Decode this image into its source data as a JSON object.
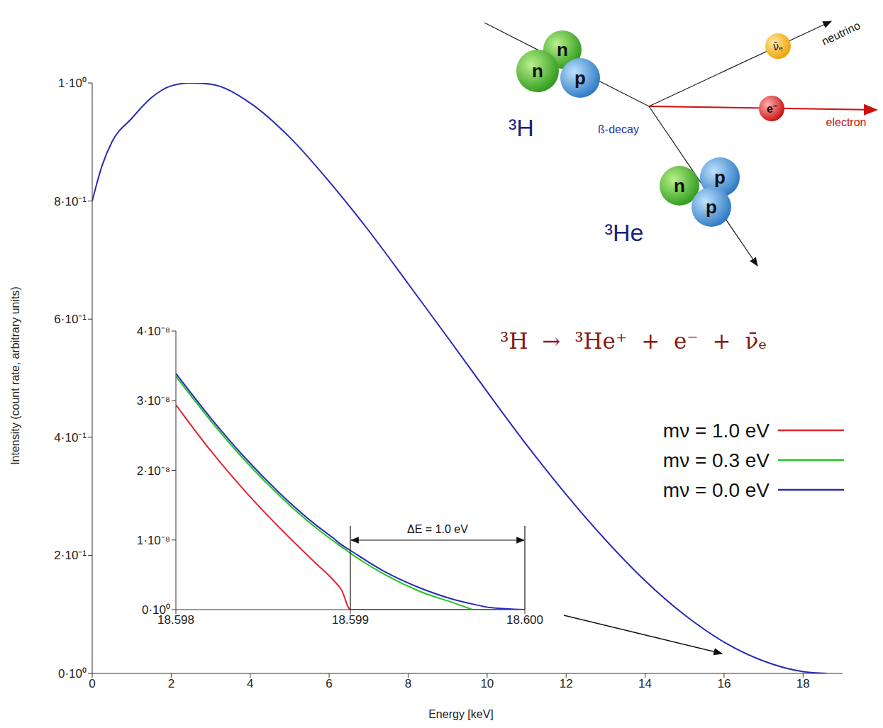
{
  "chart_data": [
    {
      "type": "line",
      "x_label": "Energy [keV]",
      "y_label": "Intensity (count rate, arbitrary units)",
      "x": [
        0,
        0.25,
        0.5,
        1,
        1.5,
        2,
        2.5,
        3,
        4,
        5,
        6,
        7,
        8,
        9,
        10,
        11,
        12,
        13,
        14,
        15,
        16,
        17,
        18,
        18.6
      ],
      "values": [
        0.8,
        0.86,
        0.9,
        0.94,
        0.975,
        0.995,
        1.0,
        0.998,
        0.966,
        0.908,
        0.833,
        0.75,
        0.66,
        0.569,
        0.477,
        0.387,
        0.303,
        0.226,
        0.157,
        0.099,
        0.053,
        0.021,
        0.003,
        0
      ],
      "color": "#2a2ab8",
      "xlim": [
        0,
        19
      ],
      "xticks": [
        0,
        2,
        4,
        6,
        8,
        10,
        12,
        14,
        16,
        18
      ],
      "ylim": [
        0,
        1
      ],
      "yticks": [
        {
          "value": 0,
          "label": "0·10⁰"
        },
        {
          "value": 0.2,
          "label": "2·10⁻¹"
        },
        {
          "value": 0.4,
          "label": "4·10⁻¹"
        },
        {
          "value": 0.6,
          "label": "6·10⁻¹"
        },
        {
          "value": 0.8,
          "label": "8·10⁻¹"
        },
        {
          "value": 1,
          "label": "1·10⁰"
        }
      ],
      "grid": false
    },
    {
      "type": "line",
      "x": [
        18.598,
        18.5982,
        18.5984,
        18.5986,
        18.5988,
        18.5989,
        18.59895,
        18.599,
        18.5992,
        18.5994,
        18.5996,
        18.5997,
        18.5998,
        18.6
      ],
      "series": [
        {
          "name": "mν = 1.0 eV",
          "color": "#e3262d",
          "values": [
            2.94e-08,
            2.28e-08,
            1.69e-08,
            1.16e-08,
            6.7e-09,
            4.3e-09,
            2.8e-09,
            0,
            0,
            0,
            0,
            0,
            0,
            0
          ]
        },
        {
          "name": "mν = 0.3 eV",
          "color": "#22c422",
          "values": [
            3.35e-08,
            2.71e-08,
            2.13e-08,
            1.62e-08,
            1.18e-08,
            9.9e-09,
            9e-09,
            8.1e-09,
            5e-09,
            2.6e-09,
            9e-10,
            0,
            null,
            null
          ]
        },
        {
          "name": "mν = 0.0 eV",
          "color": "#2a2ab8",
          "values": [
            3.39e-08,
            2.75e-08,
            2.17e-08,
            1.66e-08,
            1.22e-08,
            1.03e-08,
            9.3e-09,
            8.5e-09,
            5.4e-09,
            3.1e-09,
            1.4e-09,
            8e-10,
            3e-10,
            0
          ]
        }
      ],
      "xlim": [
        18.598,
        18.6
      ],
      "xticks": [
        18.598,
        18.599,
        {
          "value": 18.6,
          "label": "18.600"
        }
      ],
      "ylim": [
        0,
        4e-08
      ],
      "yticks": [
        {
          "value": 0,
          "label": "0·10⁰"
        },
        {
          "value": 1e-08,
          "label": "1·10⁻⁸"
        },
        {
          "value": 2e-08,
          "label": "2·10⁻⁸"
        },
        {
          "value": 3e-08,
          "label": "3·10⁻⁸"
        },
        {
          "value": 4e-08,
          "label": "4·10⁻⁸"
        }
      ],
      "grid": false,
      "legend": "right",
      "annotations": [
        {
          "text": "ΔE = 1.0 eV",
          "x": [
            18.599,
            18.6
          ]
        }
      ]
    }
  ],
  "diagram": {
    "parent": {
      "label": "³H",
      "nucleons": [
        "n",
        "n",
        "p"
      ]
    },
    "process": "ß-decay",
    "neutrino": {
      "symbol": "ν̄ₑ",
      "label": "neutrino"
    },
    "electron": {
      "symbol": "e⁻",
      "label": "electron"
    },
    "daughter": {
      "label": "³He",
      "nucleons": [
        "p",
        "n",
        "p"
      ]
    },
    "equation": "³H → ³He⁺ + e⁻ + ν̄ₑ"
  }
}
